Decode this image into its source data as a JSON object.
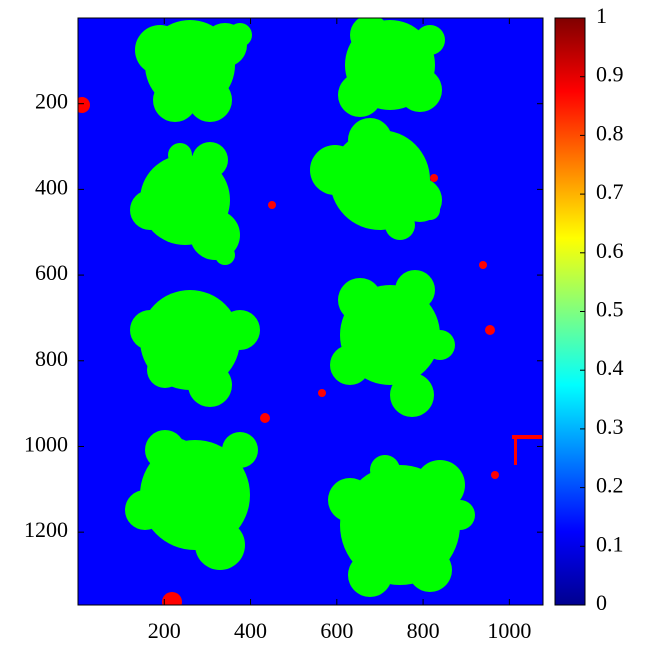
{
  "chart_data": {
    "type": "image",
    "xlim": [
      0,
      1078
    ],
    "ylim": [
      0,
      1370
    ],
    "y_reversed": true,
    "xticks": [
      200,
      400,
      600,
      800,
      1000
    ],
    "yticks": [
      200,
      400,
      600,
      800,
      1000,
      1200
    ],
    "classes": [
      {
        "value": 0.125,
        "color": "#0000ff"
      },
      {
        "value": 0.5,
        "color": "#00ff00"
      },
      {
        "value": 0.875,
        "color": "#ff0000"
      }
    ],
    "colorbar": {
      "colormap": "jet",
      "clim": [
        0,
        1
      ],
      "ticks": [
        0,
        0.1,
        0.2,
        0.3,
        0.4,
        0.5,
        0.6,
        0.7,
        0.8,
        0.9,
        1
      ]
    }
  }
}
